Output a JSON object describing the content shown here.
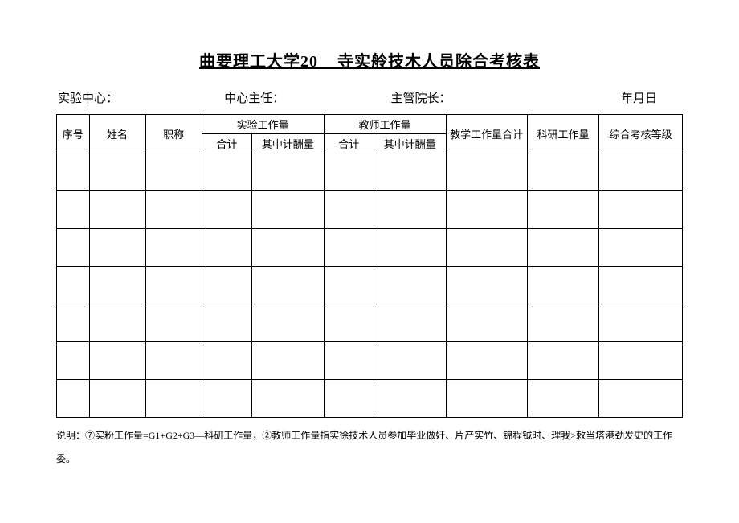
{
  "title": {
    "part1": "曲要理工大学",
    "year_prefix": "20",
    "part2": "寺实舲技木人员除合考核表"
  },
  "meta": {
    "center": "实验中心：",
    "director": "中心主任：",
    "dean": "主管院长：",
    "date": "年月日"
  },
  "headers": {
    "seq": "序号",
    "name": "姓名",
    "jobTitle": "职称",
    "expWorkload": "实验工作量",
    "teachWorkload": "教师工作量",
    "subtotal": "合计",
    "paidAmong": "其中计酬量",
    "teachTotal": "教学工作量合计",
    "research": "科研工作量",
    "grade": "综合考核等级"
  },
  "rowCount": 7,
  "note": "说明：⑦实粉工作量=G1+G2+G3—科研工作量，②教师工作量指实徐技术人员参加毕业做奸、片产实竹、锦程钺时、理我>敕当塔港劲发史的工作委。",
  "style": {
    "borderColor": "#000000",
    "textColor": "#000000",
    "background": "#ffffff",
    "titleFontSize": 20,
    "metaFontSize": 15,
    "tableFontSize": 13,
    "noteFontSize": 12,
    "dataRowHeight": 47,
    "headerRowHeight": 24
  }
}
